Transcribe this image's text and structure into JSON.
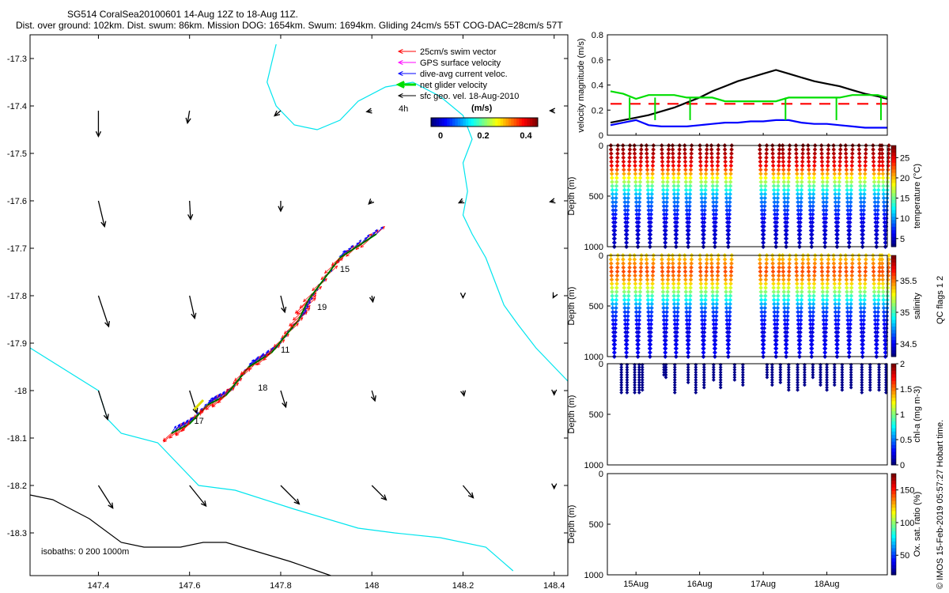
{
  "header": {
    "line1": "SG514 CoralSea20100601 14-Aug 12Z to 18-Aug 11Z.",
    "line2": "Dist. over ground: 102km. Dist. swum: 86km. Mission DOG: 1654km. Swum: 1694km. Gliding 24cm/s 55T COG-DAC=28cm/s 57T"
  },
  "legend": {
    "items": [
      {
        "label": "25cm/s swim vector",
        "color": "#ff0000",
        "width": 1
      },
      {
        "label": "GPS surface velocity",
        "color": "#ff00ff",
        "width": 1
      },
      {
        "label": "dive-avg current veloc.",
        "color": "#0000ff",
        "width": 1
      },
      {
        "label": "net glider velocity",
        "color": "#00dd00",
        "width": 3
      },
      {
        "label": "sfc geo. vel. 18-Aug-2010",
        "color": "#000000",
        "width": 1
      }
    ],
    "scale_label": "4h",
    "colorbar_title": "(m/s)",
    "colorbar_ticks": [
      "0",
      "0.2",
      "0.4"
    ]
  },
  "map": {
    "xticks": [
      "147.4",
      "147.6",
      "147.8",
      "148",
      "148.2",
      "148.4"
    ],
    "yticks": [
      "-17.3",
      "-17.4",
      "-17.5",
      "-17.6",
      "-17.7",
      "-17.8",
      "-17.9",
      "-18",
      "-18.1",
      "-18.2",
      "-18.3"
    ],
    "isobath_note": "isobaths: 0   200  1000m",
    "segment_labels": [
      "15",
      "19",
      "11",
      "18",
      "17"
    ],
    "isobath_200_color": "#00e5ee",
    "isobath_1000_color": "#000000"
  },
  "velocity_panel": {
    "ylabel": "velocity magnitude (m/s)",
    "yticks": [
      "0",
      "0.2",
      "0.4",
      "0.6",
      "0.8"
    ]
  },
  "depth_panels": {
    "ylabel": "Depth (m)",
    "yticks": [
      "0",
      "500",
      "1000"
    ]
  },
  "colorbars": {
    "temperature": {
      "label": "temperature (°C)",
      "ticks": [
        "5",
        "10",
        "15",
        "20",
        "25"
      ]
    },
    "salinity": {
      "label": "salinity",
      "ticks": [
        "34.5",
        "35",
        "35.5"
      ]
    },
    "chla": {
      "label": "chl-a (mg m-3)",
      "ticks": [
        "0",
        "0.5",
        "1",
        "1.5",
        "2"
      ]
    },
    "oxygen": {
      "label": "Ox. sat. ratio (%)",
      "ticks": [
        "50",
        "100",
        "150"
      ]
    }
  },
  "time_axis": {
    "ticks": [
      "15Aug",
      "16Aug",
      "17Aug",
      "18Aug"
    ]
  },
  "side_notes": {
    "qc": "QC flags 1  2",
    "credit": "© IMOS 15-Feb-2019 05:57:27 Hobart time."
  },
  "chart_data": [
    {
      "type": "scatter",
      "title": "SG514 CoralSea20100601 14-Aug 12Z to 18-Aug 11Z.",
      "subtitle": "Dist. over ground: 102km. Dist. swum: 86km. Mission DOG: 1654km. Swum: 1694km. Gliding 24cm/s 55T COG-DAC=28cm/s 57T",
      "xlim": [
        147.25,
        148.43
      ],
      "ylim": [
        -18.39,
        -17.25
      ],
      "track": [
        {
          "x": 147.56,
          "y": -18.09
        },
        {
          "x": 147.6,
          "y": -18.07
        },
        {
          "x": 147.64,
          "y": -18.03
        },
        {
          "x": 147.68,
          "y": -18.01
        },
        {
          "x": 147.73,
          "y": -17.95
        },
        {
          "x": 147.78,
          "y": -17.92
        },
        {
          "x": 147.84,
          "y": -17.85
        },
        {
          "x": 147.86,
          "y": -17.81
        },
        {
          "x": 147.93,
          "y": -17.72
        },
        {
          "x": 148.01,
          "y": -17.67
        }
      ],
      "segment_labels": [
        {
          "label": "15",
          "x": 147.93,
          "y": -17.75
        },
        {
          "label": "19",
          "x": 147.88,
          "y": -17.83
        },
        {
          "label": "11",
          "x": 147.8,
          "y": -17.92
        },
        {
          "label": "18",
          "x": 147.75,
          "y": -18.0
        },
        {
          "label": "17",
          "x": 147.61,
          "y": -18.07
        }
      ],
      "geostrophic_vectors": [
        {
          "x": 147.4,
          "y": -17.41,
          "u": 0.0,
          "v": -0.25
        },
        {
          "x": 147.6,
          "y": -17.41,
          "u": -0.02,
          "v": -0.12
        },
        {
          "x": 147.8,
          "y": -17.41,
          "u": -0.06,
          "v": -0.05
        },
        {
          "x": 148.0,
          "y": -17.41,
          "u": -0.05,
          "v": -0.01
        },
        {
          "x": 148.4,
          "y": -17.41,
          "u": -0.04,
          "v": 0.0
        },
        {
          "x": 147.4,
          "y": -17.6,
          "u": 0.06,
          "v": -0.25
        },
        {
          "x": 147.6,
          "y": -17.6,
          "u": 0.01,
          "v": -0.18
        },
        {
          "x": 147.8,
          "y": -17.6,
          "u": 0.0,
          "v": -0.1
        },
        {
          "x": 148.0,
          "y": -17.6,
          "u": -0.03,
          "v": -0.03
        },
        {
          "x": 148.2,
          "y": -17.6,
          "u": -0.04,
          "v": -0.02
        },
        {
          "x": 148.4,
          "y": -17.6,
          "u": -0.04,
          "v": -0.01
        },
        {
          "x": 147.4,
          "y": -17.8,
          "u": 0.1,
          "v": -0.3
        },
        {
          "x": 147.6,
          "y": -17.8,
          "u": 0.05,
          "v": -0.22
        },
        {
          "x": 147.8,
          "y": -17.8,
          "u": 0.04,
          "v": -0.16
        },
        {
          "x": 148.0,
          "y": -17.8,
          "u": 0.01,
          "v": -0.06
        },
        {
          "x": 148.2,
          "y": -17.8,
          "u": 0.0,
          "v": -0.02
        },
        {
          "x": 148.4,
          "y": -17.8,
          "u": -0.01,
          "v": -0.02
        },
        {
          "x": 147.4,
          "y": -18.0,
          "u": 0.09,
          "v": -0.28
        },
        {
          "x": 147.6,
          "y": -18.0,
          "u": 0.07,
          "v": -0.22
        },
        {
          "x": 147.8,
          "y": -18.0,
          "u": 0.05,
          "v": -0.16
        },
        {
          "x": 148.0,
          "y": -18.0,
          "u": 0.03,
          "v": -0.1
        },
        {
          "x": 148.2,
          "y": -18.0,
          "u": 0.01,
          "v": -0.05
        },
        {
          "x": 148.4,
          "y": -18.0,
          "u": 0.0,
          "v": -0.04
        },
        {
          "x": 147.4,
          "y": -18.2,
          "u": 0.14,
          "v": -0.22
        },
        {
          "x": 147.6,
          "y": -18.2,
          "u": 0.16,
          "v": -0.2
        },
        {
          "x": 147.8,
          "y": -18.2,
          "u": 0.18,
          "v": -0.18
        },
        {
          "x": 148.0,
          "y": -18.2,
          "u": 0.14,
          "v": -0.14
        },
        {
          "x": 148.2,
          "y": -18.2,
          "u": 0.1,
          "v": -0.12
        },
        {
          "x": 148.4,
          "y": -18.2,
          "u": 0.0,
          "v": -0.03
        }
      ],
      "isobaths": [
        {
          "depth": 200,
          "points": [
            {
              "x": 147.25,
              "y": -17.91
            },
            {
              "x": 147.3,
              "y": -17.94
            },
            {
              "x": 147.35,
              "y": -17.97
            },
            {
              "x": 147.4,
              "y": -18.0
            },
            {
              "x": 147.42,
              "y": -18.06
            },
            {
              "x": 147.45,
              "y": -18.09
            },
            {
              "x": 147.53,
              "y": -18.11
            },
            {
              "x": 147.57,
              "y": -18.15
            },
            {
              "x": 147.62,
              "y": -18.2
            },
            {
              "x": 147.7,
              "y": -18.21
            },
            {
              "x": 147.83,
              "y": -18.25
            },
            {
              "x": 147.97,
              "y": -18.29
            },
            {
              "x": 148.05,
              "y": -18.3
            },
            {
              "x": 148.15,
              "y": -18.31
            },
            {
              "x": 148.25,
              "y": -18.33
            },
            {
              "x": 148.31,
              "y": -18.38
            }
          ]
        },
        {
          "depth": 200,
          "points": [
            {
              "x": 147.79,
              "y": -17.27
            },
            {
              "x": 147.78,
              "y": -17.31
            },
            {
              "x": 147.77,
              "y": -17.35
            },
            {
              "x": 147.79,
              "y": -17.4
            },
            {
              "x": 147.83,
              "y": -17.44
            },
            {
              "x": 147.88,
              "y": -17.45
            },
            {
              "x": 147.93,
              "y": -17.43
            },
            {
              "x": 147.97,
              "y": -17.39
            },
            {
              "x": 148.03,
              "y": -17.36
            },
            {
              "x": 148.09,
              "y": -17.35
            },
            {
              "x": 148.15,
              "y": -17.38
            },
            {
              "x": 148.2,
              "y": -17.42
            },
            {
              "x": 148.22,
              "y": -17.47
            },
            {
              "x": 148.2,
              "y": -17.52
            },
            {
              "x": 148.21,
              "y": -17.58
            },
            {
              "x": 148.2,
              "y": -17.63
            },
            {
              "x": 148.22,
              "y": -17.67
            },
            {
              "x": 148.25,
              "y": -17.72
            },
            {
              "x": 148.27,
              "y": -17.77
            },
            {
              "x": 148.29,
              "y": -17.82
            },
            {
              "x": 148.32,
              "y": -17.86
            },
            {
              "x": 148.36,
              "y": -17.91
            },
            {
              "x": 148.4,
              "y": -17.95
            },
            {
              "x": 148.43,
              "y": -17.98
            }
          ]
        },
        {
          "depth": 1000,
          "points": [
            {
              "x": 147.25,
              "y": -18.22
            },
            {
              "x": 147.3,
              "y": -18.23
            },
            {
              "x": 147.38,
              "y": -18.27
            },
            {
              "x": 147.45,
              "y": -18.32
            },
            {
              "x": 147.5,
              "y": -18.33
            },
            {
              "x": 147.58,
              "y": -18.33
            },
            {
              "x": 147.63,
              "y": -18.32
            },
            {
              "x": 147.68,
              "y": -18.32
            },
            {
              "x": 147.75,
              "y": -18.34
            },
            {
              "x": 147.82,
              "y": -18.36
            },
            {
              "x": 147.88,
              "y": -18.38
            },
            {
              "x": 147.91,
              "y": -18.39
            }
          ]
        }
      ]
    },
    {
      "type": "line",
      "ylabel": "velocity magnitude (m/s)",
      "xlabel": "",
      "x": [
        14.6,
        14.8,
        15.0,
        15.2,
        15.4,
        15.6,
        15.8,
        16.0,
        16.2,
        16.4,
        16.6,
        16.8,
        17.0,
        17.2,
        17.4,
        17.6,
        17.8,
        18.0,
        18.2,
        18.4,
        18.6,
        18.8,
        18.95
      ],
      "xlim": [
        14.55,
        18.95
      ],
      "ylim": [
        0,
        0.8
      ],
      "series": [
        {
          "name": "",
          "color": "#000000",
          "values": [
            0.1,
            0.12,
            0.14,
            0.16,
            0.19,
            0.22,
            0.26,
            0.3,
            0.35,
            0.39,
            0.43,
            0.46,
            0.49,
            0.52,
            0.49,
            0.46,
            0.43,
            0.41,
            0.39,
            0.36,
            0.33,
            0.31,
            0.29
          ]
        },
        {
          "name": "",
          "color": "#00dd00",
          "values": [
            0.35,
            0.33,
            0.29,
            0.32,
            0.32,
            0.32,
            0.3,
            0.3,
            0.3,
            0.27,
            0.27,
            0.27,
            0.27,
            0.27,
            0.3,
            0.3,
            0.3,
            0.3,
            0.3,
            0.32,
            0.32,
            0.32,
            0.3
          ]
        },
        {
          "name": "",
          "color": "#ff0000",
          "dashed": true,
          "values": [
            0.25,
            0.25,
            0.25,
            0.25,
            0.25,
            0.25,
            0.25,
            0.25,
            0.25,
            0.25,
            0.25,
            0.25,
            0.25,
            0.25,
            0.25,
            0.25,
            0.25,
            0.25,
            0.25,
            0.25,
            0.25,
            0.25,
            0.25
          ]
        },
        {
          "name": "",
          "color": "#0000ff",
          "values": [
            0.08,
            0.1,
            0.12,
            0.08,
            0.07,
            0.07,
            0.07,
            0.08,
            0.09,
            0.1,
            0.1,
            0.11,
            0.11,
            0.12,
            0.12,
            0.1,
            0.09,
            0.09,
            0.08,
            0.07,
            0.06,
            0.06,
            0.06
          ]
        }
      ]
    },
    {
      "type": "scatter",
      "ylabel": "Depth (m)",
      "colorbar_label": "temperature (°C)",
      "xlim": [
        14.55,
        18.95
      ],
      "ylim": [
        1000,
        0
      ],
      "dive_times": [
        14.66,
        14.85,
        15.03,
        15.22,
        15.46,
        15.63,
        15.82,
        16.06,
        16.24,
        16.45,
        17.0,
        17.2,
        17.36,
        17.57,
        17.76,
        17.97,
        18.16,
        18.35,
        18.56,
        18.78,
        18.92
      ],
      "dive_max_depth": 1000,
      "profile": [
        {
          "depth": 0,
          "value": 28
        },
        {
          "depth": 200,
          "value": 25
        },
        {
          "depth": 350,
          "value": 17
        },
        {
          "depth": 500,
          "value": 10
        },
        {
          "depth": 750,
          "value": 5.5
        },
        {
          "depth": 1000,
          "value": 4.5
        }
      ],
      "color_range": [
        3,
        28
      ]
    },
    {
      "type": "scatter",
      "ylabel": "Depth (m)",
      "colorbar_label": "salinity",
      "xlim": [
        14.55,
        18.95
      ],
      "ylim": [
        1000,
        0
      ],
      "profile": [
        {
          "depth": 0,
          "value": 35.35
        },
        {
          "depth": 150,
          "value": 35.6
        },
        {
          "depth": 250,
          "value": 35.45
        },
        {
          "depth": 400,
          "value": 35.0
        },
        {
          "depth": 550,
          "value": 34.6
        },
        {
          "depth": 750,
          "value": 34.45
        },
        {
          "depth": 1000,
          "value": 34.5
        }
      ],
      "color_range": [
        34.3,
        35.9
      ]
    },
    {
      "type": "scatter",
      "ylabel": "Depth (m)",
      "colorbar_label": "chl-a (mg m-3)",
      "xlim": [
        14.55,
        18.95
      ],
      "ylim": [
        1000,
        0
      ],
      "casts": [
        {
          "x": 14.77,
          "max_depth": 300
        },
        {
          "x": 14.86,
          "max_depth": 300
        },
        {
          "x": 14.98,
          "max_depth": 290
        },
        {
          "x": 15.05,
          "max_depth": 300
        },
        {
          "x": 15.1,
          "max_depth": 280
        },
        {
          "x": 15.44,
          "max_depth": 130
        },
        {
          "x": 15.47,
          "max_depth": 150
        },
        {
          "x": 15.61,
          "max_depth": 290
        },
        {
          "x": 15.82,
          "max_depth": 200
        },
        {
          "x": 15.94,
          "max_depth": 290
        },
        {
          "x": 16.07,
          "max_depth": 240
        },
        {
          "x": 16.22,
          "max_depth": 160
        },
        {
          "x": 16.33,
          "max_depth": 250
        },
        {
          "x": 16.55,
          "max_depth": 160
        },
        {
          "x": 16.68,
          "max_depth": 230
        },
        {
          "x": 17.06,
          "max_depth": 150
        },
        {
          "x": 17.14,
          "max_depth": 230
        },
        {
          "x": 17.27,
          "max_depth": 200
        },
        {
          "x": 17.4,
          "max_depth": 260
        },
        {
          "x": 17.54,
          "max_depth": 280
        },
        {
          "x": 17.65,
          "max_depth": 210
        },
        {
          "x": 17.78,
          "max_depth": 150
        },
        {
          "x": 17.9,
          "max_depth": 210
        },
        {
          "x": 18.0,
          "max_depth": 280
        },
        {
          "x": 18.12,
          "max_depth": 220
        },
        {
          "x": 18.24,
          "max_depth": 280
        },
        {
          "x": 18.38,
          "max_depth": 250
        },
        {
          "x": 18.55,
          "max_depth": 300
        },
        {
          "x": 18.68,
          "max_depth": 280
        },
        {
          "x": 18.82,
          "max_depth": 260
        },
        {
          "x": 18.93,
          "max_depth": 290
        }
      ],
      "value": 0.1,
      "color_range": [
        0,
        2
      ]
    },
    {
      "type": "scatter",
      "ylabel": "Depth (m)",
      "colorbar_label": "Ox. sat. ratio (%)",
      "xlim": [
        14.55,
        18.95
      ],
      "ylim": [
        1000,
        0
      ],
      "points": [],
      "color_range": [
        20,
        175
      ]
    }
  ]
}
